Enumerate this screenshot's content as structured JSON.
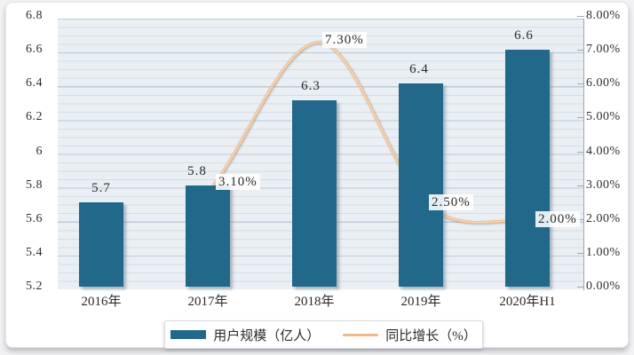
{
  "chart_data": {
    "type": "bar+line combo",
    "categories": [
      "2016年",
      "2017年",
      "2018年",
      "2019年",
      "2020年H1"
    ],
    "series": [
      {
        "name": "用户规模（亿人）",
        "type": "bar",
        "axis": "left",
        "values": [
          5.7,
          5.8,
          6.3,
          6.4,
          6.6
        ],
        "labels": [
          "5.7",
          "5.8",
          "6.3",
          "6.4",
          "6.6"
        ],
        "color": "#21688b"
      },
      {
        "name": "同比增长（%）",
        "type": "line",
        "axis": "right",
        "category_indices": [
          1,
          2,
          3,
          4
        ],
        "values": [
          3.1,
          7.3,
          2.5,
          2.0
        ],
        "labels": [
          "3.10%",
          "7.30%",
          "2.50%",
          "2.00%"
        ],
        "color": "#efb988"
      }
    ],
    "left_axis": {
      "min": 5.2,
      "max": 6.8,
      "step": 0.2,
      "ticks": [
        "6.8",
        "6.6",
        "6.4",
        "6.2",
        "6",
        "5.8",
        "5.6",
        "5.4",
        "5.2"
      ]
    },
    "right_axis": {
      "min": 0,
      "max": 8,
      "step": 1,
      "ticks": [
        "8.00%",
        "7.00%",
        "6.00%",
        "5.00%",
        "4.00%",
        "3.00%",
        "2.00%",
        "1.00%",
        "0.00%"
      ]
    },
    "grid": "horizontal major and minor gridlines on",
    "legend_position": "bottom-center",
    "title": "",
    "xlabel": "",
    "ylabel_left": "",
    "ylabel_right": ""
  }
}
